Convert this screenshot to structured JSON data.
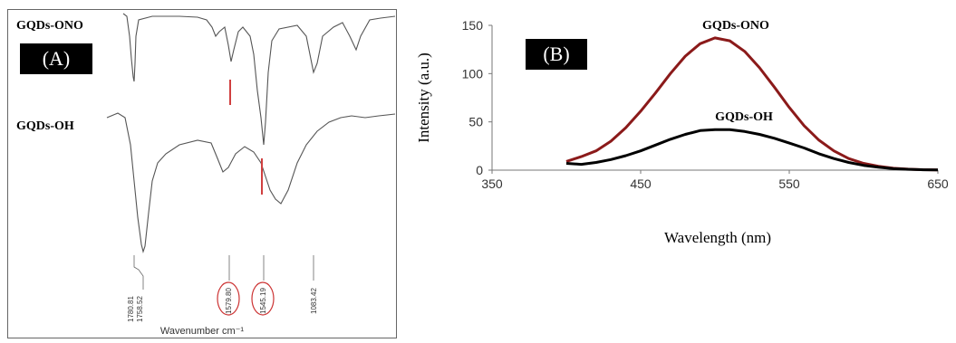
{
  "panel_a": {
    "label": "(A)",
    "series": [
      {
        "name": "GQDs-ONO"
      },
      {
        "name": "GQDs-OH"
      }
    ],
    "peak_labels": [
      "1780.81",
      "1758.52",
      "1579.80",
      "1545.19",
      "1083.42"
    ],
    "xlabel": "Wavenumber cm⁻¹",
    "colors": {
      "spectrum": "#555555",
      "marker": "#d04040",
      "circle": "#cc3333"
    }
  },
  "panel_b": {
    "label": "(B)",
    "chart_data": {
      "type": "line",
      "title": "",
      "xlabel": "Wavelength (nm)",
      "ylabel": "Intensity (a.u.)",
      "xlim": [
        350,
        650
      ],
      "ylim": [
        0,
        150
      ],
      "xticks": [
        350,
        450,
        550,
        650
      ],
      "yticks": [
        0,
        50,
        100,
        150
      ],
      "grid": false,
      "series": [
        {
          "name": "GQDs-ONO",
          "color": "#8b1a1a",
          "x": [
            400,
            410,
            420,
            430,
            440,
            450,
            460,
            470,
            480,
            490,
            500,
            510,
            520,
            530,
            540,
            550,
            560,
            570,
            580,
            590,
            600,
            610,
            620,
            630,
            640,
            650
          ],
          "y": [
            9,
            14,
            20,
            30,
            44,
            61,
            80,
            100,
            118,
            131,
            137,
            134,
            123,
            106,
            86,
            65,
            46,
            31,
            20,
            12,
            7,
            4,
            2,
            1,
            0.5,
            0.3
          ]
        },
        {
          "name": "GQDs-OH",
          "color": "#000000",
          "x": [
            400,
            410,
            420,
            430,
            440,
            450,
            460,
            470,
            480,
            490,
            500,
            510,
            520,
            530,
            540,
            550,
            560,
            570,
            580,
            590,
            600,
            610,
            620,
            630,
            640,
            650
          ],
          "y": [
            7,
            6,
            8,
            11,
            15,
            20,
            26,
            32,
            37,
            41,
            42,
            42,
            40,
            37,
            33,
            28,
            23,
            17,
            12,
            8,
            5,
            3,
            1.5,
            0.8,
            0.4,
            0.2
          ]
        }
      ]
    }
  }
}
